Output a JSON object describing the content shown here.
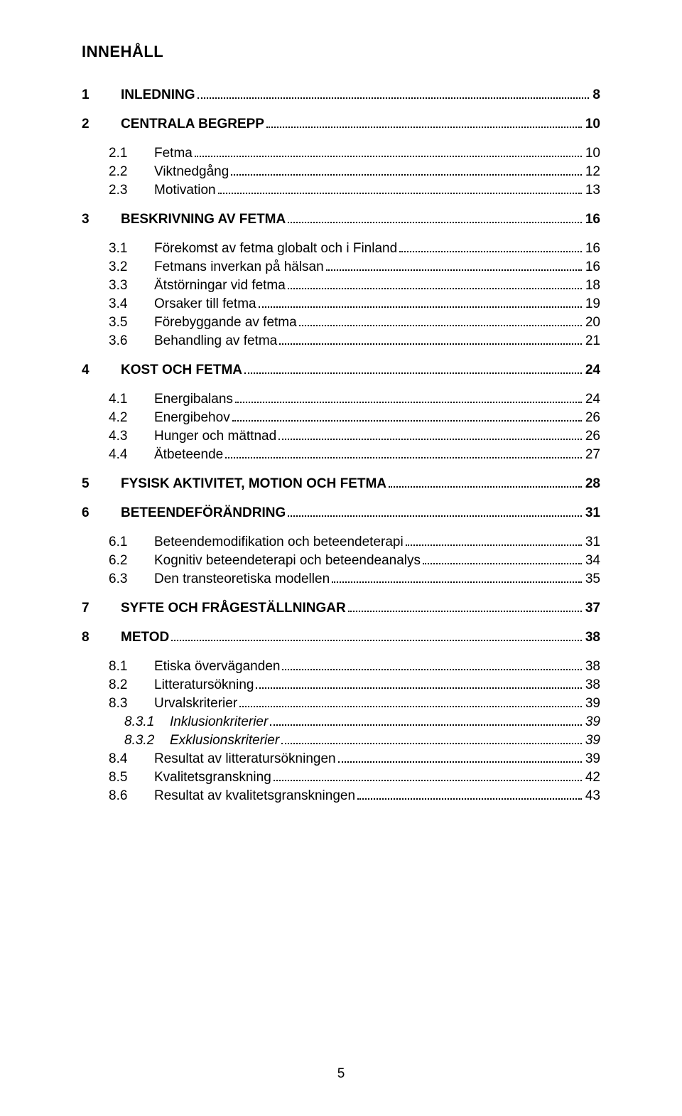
{
  "title": "INNEHÅLL",
  "footer_page_number": "5",
  "toc": [
    {
      "level": 1,
      "num": "1",
      "label": "INLEDNING",
      "page": "8"
    },
    {
      "level": 1,
      "num": "2",
      "label": "CENTRALA BEGREPP",
      "page": "10"
    },
    {
      "level": 2,
      "num": "2.1",
      "label": "Fetma",
      "page": "10"
    },
    {
      "level": 2,
      "num": "2.2",
      "label": "Viktnedgång",
      "page": "12"
    },
    {
      "level": 2,
      "num": "2.3",
      "label": "Motivation",
      "page": "13"
    },
    {
      "level": 1,
      "num": "3",
      "label": "BESKRIVNING AV FETMA",
      "page": "16"
    },
    {
      "level": 2,
      "num": "3.1",
      "label": "Förekomst av fetma globalt och i Finland",
      "page": "16"
    },
    {
      "level": 2,
      "num": "3.2",
      "label": "Fetmans inverkan på hälsan",
      "page": "16"
    },
    {
      "level": 2,
      "num": "3.3",
      "label": "Ätstörningar vid fetma",
      "page": "18"
    },
    {
      "level": 2,
      "num": "3.4",
      "label": "Orsaker till fetma",
      "page": "19"
    },
    {
      "level": 2,
      "num": "3.5",
      "label": "Förebyggande av fetma",
      "page": "20"
    },
    {
      "level": 2,
      "num": "3.6",
      "label": "Behandling av fetma",
      "page": "21"
    },
    {
      "level": 1,
      "num": "4",
      "label": "KOST OCH FETMA",
      "page": "24"
    },
    {
      "level": 2,
      "num": "4.1",
      "label": "Energibalans",
      "page": "24"
    },
    {
      "level": 2,
      "num": "4.2",
      "label": "Energibehov",
      "page": "26"
    },
    {
      "level": 2,
      "num": "4.3",
      "label": "Hunger och mättnad",
      "page": "26"
    },
    {
      "level": 2,
      "num": "4.4",
      "label": "Ätbeteende",
      "page": "27"
    },
    {
      "level": 1,
      "num": "5",
      "label": "FYSISK AKTIVITET, MOTION OCH FETMA",
      "page": "28"
    },
    {
      "level": 1,
      "num": "6",
      "label": "BETEENDEFÖRÄNDRING",
      "page": "31"
    },
    {
      "level": 2,
      "num": "6.1",
      "label": "Beteendemodifikation och beteendeterapi",
      "page": "31"
    },
    {
      "level": 2,
      "num": "6.2",
      "label": "Kognitiv beteendeterapi och beteendeanalys",
      "page": "34"
    },
    {
      "level": 2,
      "num": "6.3",
      "label": "Den transteoretiska modellen",
      "page": "35"
    },
    {
      "level": 1,
      "num": "7",
      "label": "SYFTE OCH FRÅGESTÄLLNINGAR",
      "page": "37"
    },
    {
      "level": 1,
      "num": "8",
      "label": "METOD",
      "page": "38"
    },
    {
      "level": 2,
      "num": "8.1",
      "label": "Etiska överväganden",
      "page": "38"
    },
    {
      "level": 2,
      "num": "8.2",
      "label": "Litteratursökning",
      "page": "38"
    },
    {
      "level": 2,
      "num": "8.3",
      "label": "Urvalskriterier",
      "page": "39"
    },
    {
      "level": 3,
      "num": "8.3.1",
      "label": "Inklusionkriterier",
      "page": "39"
    },
    {
      "level": 3,
      "num": "8.3.2",
      "label": "Exklusionskriterier",
      "page": "39"
    },
    {
      "level": 2,
      "num": "8.4",
      "label": "Resultat av litteratursökningen",
      "page": "39"
    },
    {
      "level": 2,
      "num": "8.5",
      "label": "Kvalitetsgranskning",
      "page": "42"
    },
    {
      "level": 2,
      "num": "8.6",
      "label": "Resultat av kvalitetsgranskningen",
      "page": "43"
    }
  ]
}
